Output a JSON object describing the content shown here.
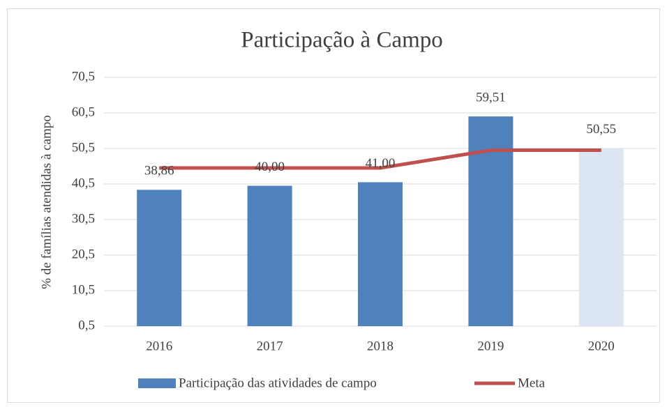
{
  "chart_data": {
    "type": "bar",
    "title": "Participação à Campo",
    "y_label": "% de famílias atendidas à campo",
    "categories": [
      "2016",
      "2017",
      "2018",
      "2019",
      "2020"
    ],
    "series": [
      {
        "name": "Participação das atividades de campo",
        "type": "bar",
        "color": "#4f81bd",
        "colors": [
          "#4f81bd",
          "#4f81bd",
          "#4f81bd",
          "#4f81bd",
          "#dce6f2"
        ],
        "values": [
          38.86,
          40.0,
          41.0,
          59.51,
          50.55
        ],
        "value_labels": [
          "38,86",
          "40,00",
          "41,00",
          "59,51",
          "50,55"
        ]
      },
      {
        "name": "Meta",
        "type": "line",
        "color": "#c0504d",
        "values": [
          45,
          45,
          45,
          50,
          50
        ]
      }
    ],
    "ylim": [
      0.5,
      70.5
    ],
    "yticks": [
      {
        "value": 0.5,
        "label": "0,5"
      },
      {
        "value": 10.5,
        "label": "10,5"
      },
      {
        "value": 20.5,
        "label": "20,5"
      },
      {
        "value": 30.5,
        "label": "30,5"
      },
      {
        "value": 40.5,
        "label": "40,5"
      },
      {
        "value": 50.5,
        "label": "50,5"
      },
      {
        "value": 60.5,
        "label": "60,5"
      },
      {
        "value": 70.5,
        "label": "70,5"
      }
    ],
    "grid": true,
    "legend": "bottom"
  }
}
